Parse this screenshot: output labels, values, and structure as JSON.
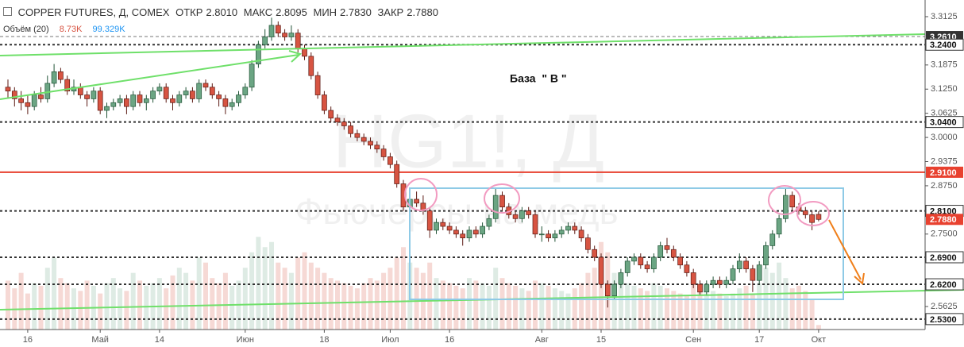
{
  "header": {
    "symbol": "COPPER FUTURES, Д, COMEX",
    "open_label": "ОТКР",
    "open": "2.8010",
    "high_label": "МАКС",
    "high": "2.8095",
    "low_label": "МИН",
    "low": "2.7830",
    "close_label": "ЗАКР",
    "close": "2.7880",
    "volume_label": "Объём (20)",
    "volume": "8.73K",
    "volume_ma": "99.329K"
  },
  "chart_data": {
    "type": "candlestick",
    "watermark": "HG1!, Д",
    "watermark_subtitle": "Фьючерсы на медь",
    "annotation": "База  \" В \"",
    "up_color": "#6ba583",
    "down_color": "#d75442",
    "categories": [
      null,
      null,
      null,
      "16",
      null,
      null,
      null,
      null,
      null,
      null,
      null,
      null,
      null,
      null,
      "Май",
      null,
      null,
      null,
      null,
      null,
      null,
      null,
      null,
      "14",
      null,
      null,
      null,
      null,
      null,
      null,
      null,
      null,
      null,
      null,
      null,
      null,
      "Июн",
      null,
      null,
      null,
      null,
      null,
      null,
      null,
      null,
      null,
      null,
      null,
      "18",
      null,
      null,
      null,
      null,
      null,
      null,
      null,
      null,
      null,
      "Июл",
      null,
      null,
      null,
      null,
      null,
      null,
      null,
      null,
      "16",
      null,
      null,
      null,
      null,
      null,
      null,
      null,
      null,
      null,
      null,
      null,
      null,
      null,
      "Авг",
      null,
      null,
      null,
      null,
      null,
      null,
      null,
      null,
      "15",
      null,
      null,
      null,
      null,
      null,
      null,
      null,
      null,
      null,
      null,
      null,
      null,
      null,
      "Сен",
      null,
      null,
      null,
      null,
      null,
      null,
      null,
      null,
      null,
      "17",
      null,
      null,
      null,
      null,
      null,
      null,
      null,
      null,
      "Окт"
    ],
    "open": [
      3.13,
      3.12,
      3.1,
      3.09,
      3.08,
      3.11,
      3.1,
      3.14,
      3.17,
      3.15,
      3.12,
      3.13,
      3.11,
      3.1,
      3.12,
      3.07,
      3.08,
      3.09,
      3.1,
      3.08,
      3.11,
      3.09,
      3.1,
      3.12,
      3.13,
      3.1,
      3.09,
      3.11,
      3.12,
      3.1,
      3.14,
      3.13,
      3.11,
      3.1,
      3.08,
      3.09,
      3.11,
      3.13,
      3.19,
      3.24,
      3.26,
      3.29,
      3.27,
      3.26,
      3.27,
      3.23,
      3.21,
      3.16,
      3.11,
      3.07,
      3.05,
      3.04,
      3.03,
      3.01,
      3.0,
      2.99,
      2.98,
      2.97,
      2.95,
      2.93,
      2.88,
      2.82,
      2.84,
      2.83,
      2.81,
      2.76,
      2.78,
      2.77,
      2.76,
      2.75,
      2.74,
      2.76,
      2.75,
      2.77,
      2.79,
      2.85,
      2.82,
      2.8,
      2.79,
      2.81,
      2.8,
      2.75,
      2.75,
      2.74,
      2.75,
      2.76,
      2.77,
      2.76,
      2.74,
      2.71,
      2.69,
      2.62,
      2.59,
      2.62,
      2.65,
      2.68,
      2.69,
      2.67,
      2.66,
      2.69,
      2.72,
      2.71,
      2.69,
      2.67,
      2.65,
      2.62,
      2.6,
      2.62,
      2.63,
      2.62,
      2.63,
      2.66,
      2.68,
      2.66,
      2.63,
      2.67,
      2.72,
      2.75,
      2.79,
      2.85,
      2.82,
      2.81,
      2.8,
      2.801
    ],
    "high": [
      3.15,
      3.13,
      3.12,
      3.11,
      3.12,
      3.13,
      3.16,
      3.19,
      3.18,
      3.16,
      3.15,
      3.14,
      3.12,
      3.13,
      3.13,
      3.09,
      3.1,
      3.11,
      3.11,
      3.12,
      3.12,
      3.11,
      3.13,
      3.14,
      3.14,
      3.11,
      3.12,
      3.13,
      3.13,
      3.15,
      3.15,
      3.14,
      3.12,
      3.11,
      3.1,
      3.12,
      3.14,
      3.2,
      3.25,
      3.28,
      3.31,
      3.3,
      3.28,
      3.29,
      3.28,
      3.24,
      3.22,
      3.17,
      3.12,
      3.08,
      3.06,
      3.05,
      3.04,
      3.02,
      3.01,
      3.0,
      2.99,
      2.98,
      2.96,
      2.94,
      2.89,
      2.86,
      2.86,
      2.85,
      2.82,
      2.79,
      2.79,
      2.78,
      2.77,
      2.76,
      2.77,
      2.77,
      2.78,
      2.8,
      2.87,
      2.86,
      2.83,
      2.81,
      2.82,
      2.82,
      2.81,
      2.77,
      2.76,
      2.76,
      2.77,
      2.78,
      2.78,
      2.77,
      2.75,
      2.72,
      2.7,
      2.63,
      2.63,
      2.66,
      2.69,
      2.7,
      2.7,
      2.68,
      2.7,
      2.73,
      2.74,
      2.72,
      2.7,
      2.68,
      2.66,
      2.63,
      2.63,
      2.64,
      2.64,
      2.64,
      2.67,
      2.7,
      2.69,
      2.67,
      2.68,
      2.73,
      2.76,
      2.8,
      2.87,
      2.86,
      2.83,
      2.82,
      2.81,
      2.8095
    ],
    "low": [
      3.1,
      3.08,
      3.07,
      3.06,
      3.07,
      3.09,
      3.09,
      3.13,
      3.14,
      3.11,
      3.11,
      3.1,
      3.08,
      3.09,
      3.06,
      3.05,
      3.07,
      3.08,
      3.06,
      3.07,
      3.08,
      3.07,
      3.09,
      3.11,
      3.09,
      3.07,
      3.08,
      3.1,
      3.09,
      3.09,
      3.12,
      3.1,
      3.08,
      3.06,
      3.07,
      3.08,
      3.1,
      3.12,
      3.18,
      3.23,
      3.25,
      3.26,
      3.25,
      3.25,
      3.22,
      3.2,
      3.15,
      3.1,
      3.06,
      3.04,
      3.03,
      3.02,
      3.0,
      2.99,
      2.98,
      2.97,
      2.96,
      2.94,
      2.92,
      2.87,
      2.81,
      2.81,
      2.82,
      2.8,
      2.74,
      2.75,
      2.76,
      2.75,
      2.74,
      2.72,
      2.73,
      2.74,
      2.74,
      2.76,
      2.78,
      2.81,
      2.79,
      2.78,
      2.78,
      2.79,
      2.74,
      2.73,
      2.73,
      2.73,
      2.74,
      2.75,
      2.75,
      2.73,
      2.7,
      2.68,
      2.61,
      2.56,
      2.58,
      2.61,
      2.64,
      2.67,
      2.66,
      2.65,
      2.65,
      2.68,
      2.7,
      2.68,
      2.66,
      2.64,
      2.61,
      2.59,
      2.59,
      2.61,
      2.61,
      2.61,
      2.62,
      2.65,
      2.65,
      2.6,
      2.62,
      2.66,
      2.71,
      2.74,
      2.78,
      2.81,
      2.8,
      2.79,
      2.76,
      2.783
    ],
    "close": [
      3.12,
      3.1,
      3.09,
      3.08,
      3.11,
      3.1,
      3.14,
      3.17,
      3.15,
      3.12,
      3.13,
      3.11,
      3.1,
      3.12,
      3.07,
      3.08,
      3.09,
      3.1,
      3.08,
      3.11,
      3.09,
      3.1,
      3.12,
      3.13,
      3.1,
      3.09,
      3.11,
      3.12,
      3.1,
      3.14,
      3.13,
      3.11,
      3.1,
      3.08,
      3.09,
      3.11,
      3.13,
      3.19,
      3.24,
      3.26,
      3.29,
      3.27,
      3.26,
      3.27,
      3.23,
      3.21,
      3.16,
      3.11,
      3.07,
      3.05,
      3.04,
      3.03,
      3.01,
      3.0,
      2.99,
      2.98,
      2.97,
      2.95,
      2.93,
      2.88,
      2.82,
      2.84,
      2.83,
      2.81,
      2.76,
      2.78,
      2.77,
      2.76,
      2.75,
      2.74,
      2.76,
      2.75,
      2.77,
      2.79,
      2.85,
      2.82,
      2.8,
      2.79,
      2.81,
      2.8,
      2.75,
      2.75,
      2.74,
      2.75,
      2.76,
      2.77,
      2.76,
      2.74,
      2.71,
      2.69,
      2.62,
      2.59,
      2.62,
      2.65,
      2.68,
      2.69,
      2.67,
      2.66,
      2.69,
      2.72,
      2.71,
      2.69,
      2.67,
      2.65,
      2.62,
      2.6,
      2.62,
      2.63,
      2.62,
      2.63,
      2.66,
      2.68,
      2.66,
      2.63,
      2.67,
      2.72,
      2.75,
      2.79,
      2.85,
      2.82,
      2.81,
      2.8,
      2.78,
      2.788
    ],
    "volume": [
      95,
      80,
      110,
      70,
      90,
      85,
      120,
      140,
      100,
      90,
      80,
      75,
      95,
      85,
      70,
      90,
      100,
      80,
      75,
      110,
      95,
      85,
      90,
      100,
      80,
      105,
      120,
      110,
      95,
      140,
      130,
      100,
      90,
      110,
      85,
      95,
      120,
      150,
      180,
      160,
      170,
      130,
      120,
      110,
      140,
      150,
      130,
      120,
      110,
      100,
      95,
      90,
      85,
      80,
      90,
      100,
      95,
      110,
      120,
      140,
      160,
      130,
      120,
      110,
      130,
      100,
      95,
      90,
      85,
      80,
      100,
      95,
      90,
      85,
      120,
      100,
      90,
      85,
      80,
      75,
      95,
      90,
      85,
      80,
      75,
      70,
      80,
      90,
      110,
      120,
      170,
      150,
      110,
      100,
      90,
      85,
      80,
      75,
      90,
      85,
      80,
      75,
      70,
      65,
      90,
      80,
      70,
      75,
      70,
      65,
      70,
      80,
      85,
      70,
      90,
      120,
      110,
      130,
      100,
      80,
      85,
      75,
      60,
      8.73
    ],
    "vlim": [
      0,
      640
    ],
    "ylim": [
      2.503,
      3.3556
    ],
    "yticks": [
      3.3125,
      3.1875,
      {
        "value": 3.125,
        "label": "3.1250"
      },
      3.0625,
      {
        "value": 3,
        "label": "3.0000"
      },
      2.9375,
      {
        "value": 2.875,
        "label": "2.8750"
      },
      {
        "value": 2.75,
        "label": "2.7500"
      },
      2.5625
    ],
    "levels": [
      {
        "value": 3.261,
        "label": "3.2610",
        "style": "dashed-light",
        "color": "#333333"
      },
      {
        "value": 3.24,
        "label": "3.2400",
        "style": "dashed",
        "color": "#ffffff"
      },
      {
        "value": 3.04,
        "label": "3.0400",
        "style": "dashed",
        "color": "#ffffff"
      },
      {
        "value": 2.91,
        "label": "2.9100",
        "style": "solid",
        "color": "#e8412f"
      },
      {
        "value": 2.81,
        "label": "2.8100",
        "style": "dashed",
        "color": "#ffffff"
      },
      {
        "value": 2.788,
        "label": "2.7880",
        "style": "none",
        "color": "#e8412f"
      },
      {
        "value": 2.69,
        "label": "2.6900",
        "style": "dashed",
        "color": "#ffffff"
      },
      {
        "value": 2.62,
        "label": "2.6200",
        "style": "dashed",
        "color": "#ffffff"
      },
      {
        "value": 2.53,
        "label": "2.5300",
        "style": "dashed",
        "color": "#ffffff"
      }
    ]
  }
}
